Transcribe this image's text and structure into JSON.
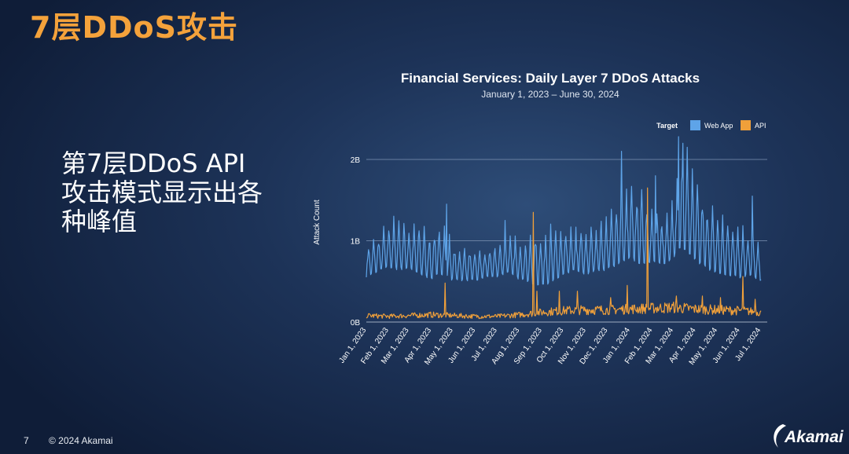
{
  "slide": {
    "title": "7层DDoS攻击",
    "bullet": "第7层DDoS API攻击模式显示出各种峰值",
    "page_number": "7",
    "copyright": "© 2024 Akamai",
    "logo_text": "Akamai"
  },
  "colors": {
    "accent": "#f4a23b",
    "web_app": "#5ea4e8",
    "api": "#f0a03a",
    "grid": "#7f95b5"
  },
  "chart_data": {
    "type": "line",
    "title": "Financial Services: Daily Layer 7 DDoS Attacks",
    "subtitle": "January 1, 2023 – June 30, 2024",
    "ylabel": "Attack Count",
    "xlabel": "",
    "legend_title": "Target",
    "legend_position": "top-right",
    "grid": true,
    "ylim": [
      0,
      2000000000
    ],
    "y_ticks": [
      {
        "value": 0,
        "label": "0B"
      },
      {
        "value": 1000000000,
        "label": "1B"
      },
      {
        "value": 2000000000,
        "label": "2B"
      }
    ],
    "x_tick_labels": [
      "Jan 1, 2023",
      "Feb 1, 2023",
      "Mar 1, 2023",
      "Apr 1, 2023",
      "May 1, 2023",
      "Jun 1, 2023",
      "Jul 1, 2023",
      "Aug 1, 2023",
      "Sep 1, 2023",
      "Oct 1, 2023",
      "Nov 1, 2023",
      "Dec 1, 2023",
      "Jan 1, 2024",
      "Feb 1, 2024",
      "Mar 1, 2024",
      "Apr 1, 2024",
      "May 1, 2024",
      "Jun 1, 2024",
      "Jul 1, 2024"
    ],
    "series": [
      {
        "name": "Web App",
        "color": "#5ea4e8",
        "x": [
          "2023-01-01",
          "2023-01-15",
          "2023-02-01",
          "2023-02-15",
          "2023-03-01",
          "2023-03-15",
          "2023-04-01",
          "2023-04-15",
          "2023-05-01",
          "2023-05-15",
          "2023-06-01",
          "2023-06-15",
          "2023-07-01",
          "2023-07-15",
          "2023-08-01",
          "2023-08-15",
          "2023-09-01",
          "2023-09-15",
          "2023-10-01",
          "2023-10-15",
          "2023-11-01",
          "2023-11-15",
          "2023-12-01",
          "2023-12-15",
          "2024-01-01",
          "2024-01-15",
          "2024-02-01",
          "2024-02-15",
          "2024-03-01",
          "2024-03-15",
          "2024-04-01",
          "2024-04-15",
          "2024-05-01",
          "2024-05-15",
          "2024-06-01",
          "2024-06-15",
          "2024-06-30"
        ],
        "low": [
          500000000,
          550000000,
          600000000,
          550000000,
          600000000,
          500000000,
          450000000,
          500000000,
          450000000,
          450000000,
          450000000,
          500000000,
          500000000,
          550000000,
          450000000,
          400000000,
          350000000,
          400000000,
          500000000,
          550000000,
          500000000,
          550000000,
          550000000,
          600000000,
          650000000,
          600000000,
          650000000,
          600000000,
          700000000,
          750000000,
          600000000,
          550000000,
          500000000,
          450000000,
          450000000,
          500000000,
          450000000
        ],
        "high": [
          950000000,
          1050000000,
          1200000000,
          1300000000,
          1150000000,
          1200000000,
          1100000000,
          1250000000,
          950000000,
          950000000,
          900000000,
          900000000,
          950000000,
          1050000000,
          1050000000,
          1050000000,
          1150000000,
          1150000000,
          1100000000,
          1150000000,
          1150000000,
          1200000000,
          1300000000,
          1500000000,
          1650000000,
          1600000000,
          1400000000,
          1300000000,
          1550000000,
          2100000000,
          1700000000,
          1500000000,
          1300000000,
          1300000000,
          1250000000,
          1100000000,
          900000000
        ],
        "spikes": [
          {
            "x": "2023-04-22",
            "y": 1450000000
          },
          {
            "x": "2023-07-12",
            "y": 1250000000
          },
          {
            "x": "2023-12-20",
            "y": 2100000000
          },
          {
            "x": "2024-02-05",
            "y": 1800000000
          },
          {
            "x": "2024-03-08",
            "y": 2280000000
          },
          {
            "x": "2024-03-14",
            "y": 2200000000
          },
          {
            "x": "2024-03-20",
            "y": 2150000000
          },
          {
            "x": "2024-06-18",
            "y": 1550000000
          }
        ]
      },
      {
        "name": "API",
        "color": "#f0a03a",
        "x": [
          "2023-01-01",
          "2023-02-01",
          "2023-03-01",
          "2023-04-01",
          "2023-05-01",
          "2023-06-01",
          "2023-07-01",
          "2023-08-01",
          "2023-09-01",
          "2023-10-01",
          "2023-11-01",
          "2023-12-01",
          "2024-01-01",
          "2024-02-01",
          "2024-03-01",
          "2024-04-01",
          "2024-05-01",
          "2024-06-01",
          "2024-06-30"
        ],
        "base": [
          80000000,
          70000000,
          80000000,
          90000000,
          80000000,
          70000000,
          70000000,
          90000000,
          120000000,
          140000000,
          150000000,
          150000000,
          160000000,
          170000000,
          180000000,
          160000000,
          150000000,
          140000000,
          120000000
        ],
        "spikes": [
          {
            "x": "2023-04-20",
            "y": 480000000
          },
          {
            "x": "2023-08-20",
            "y": 1350000000
          },
          {
            "x": "2023-08-25",
            "y": 380000000
          },
          {
            "x": "2023-09-25",
            "y": 380000000
          },
          {
            "x": "2023-10-20",
            "y": 380000000
          },
          {
            "x": "2023-12-05",
            "y": 300000000
          },
          {
            "x": "2023-12-28",
            "y": 450000000
          },
          {
            "x": "2024-01-25",
            "y": 1650000000
          },
          {
            "x": "2024-03-05",
            "y": 320000000
          },
          {
            "x": "2024-04-10",
            "y": 320000000
          },
          {
            "x": "2024-05-05",
            "y": 300000000
          },
          {
            "x": "2024-06-05",
            "y": 560000000
          },
          {
            "x": "2024-06-22",
            "y": 280000000
          }
        ]
      }
    ]
  }
}
